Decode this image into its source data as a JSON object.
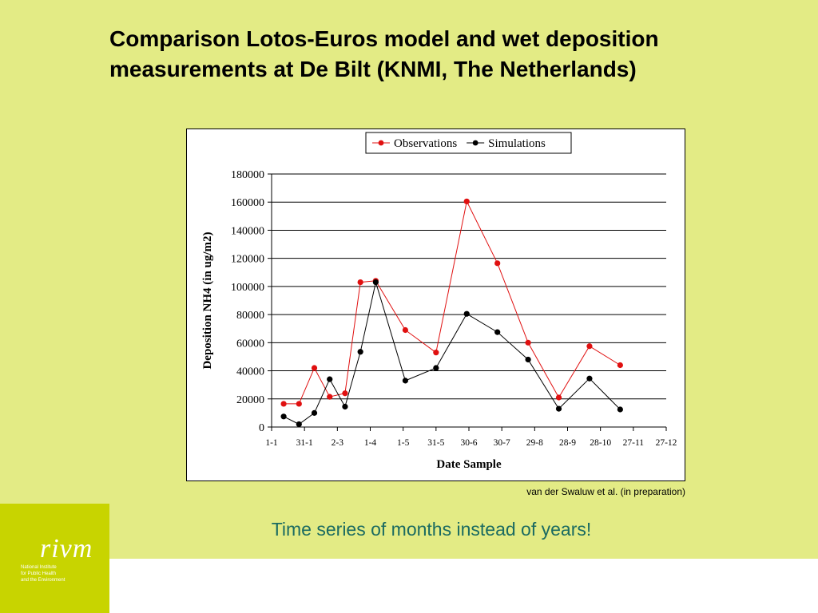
{
  "slide": {
    "title": "Comparison Lotos-Euros model and wet deposition measurements at De Bilt (KNMI, The Netherlands)",
    "source": "van der Swaluw et al. (in preparation)",
    "caption": "Time series of months instead of years!",
    "logo": {
      "name": "rivm",
      "subtitle": [
        "National Institute",
        "for Public Health",
        "and the Environment"
      ]
    }
  },
  "colors": {
    "background": "#e3eb85",
    "logo_block": "#c8d400",
    "caption": "#1b6b61",
    "observations": "#e01010",
    "simulations": "#000000"
  },
  "chart_data": {
    "type": "line",
    "title": "",
    "xlabel": "Date Sample",
    "ylabel": "Deposition NH4 (in ug/m2)",
    "x_ticks": [
      {
        "label": "1-1",
        "day": 0
      },
      {
        "label": "31-1",
        "day": 30
      },
      {
        "label": "2-3",
        "day": 60
      },
      {
        "label": "1-4",
        "day": 90
      },
      {
        "label": "1-5",
        "day": 120
      },
      {
        "label": "31-5",
        "day": 150
      },
      {
        "label": "30-6",
        "day": 180
      },
      {
        "label": "30-7",
        "day": 210
      },
      {
        "label": "29-8",
        "day": 240
      },
      {
        "label": "28-9",
        "day": 270
      },
      {
        "label": "28-10",
        "day": 300
      },
      {
        "label": "27-11",
        "day": 330
      },
      {
        "label": "27-12",
        "day": 360
      }
    ],
    "xlim": [
      0,
      360
    ],
    "ylim": [
      0,
      180000
    ],
    "y_ticks": [
      0,
      20000,
      40000,
      60000,
      80000,
      100000,
      120000,
      140000,
      160000,
      180000
    ],
    "grid": true,
    "legend_position": "top-right",
    "series": [
      {
        "name": "Observations",
        "color": "#e01010",
        "points": [
          [
            11,
            16500
          ],
          [
            25,
            16500
          ],
          [
            39,
            42000
          ],
          [
            53,
            21500
          ],
          [
            67,
            24000
          ],
          [
            81,
            103000
          ],
          [
            95,
            104000
          ],
          [
            122,
            69000
          ],
          [
            150,
            53000
          ],
          [
            178,
            160500
          ],
          [
            206,
            116500
          ],
          [
            234,
            60000
          ],
          [
            262,
            21000
          ],
          [
            290,
            57500
          ],
          [
            318,
            44000
          ]
        ]
      },
      {
        "name": "Simulations",
        "color": "#000000",
        "points": [
          [
            11,
            7500
          ],
          [
            25,
            2000
          ],
          [
            39,
            10000
          ],
          [
            53,
            34000
          ],
          [
            67,
            14500
          ],
          [
            81,
            53500
          ],
          [
            95,
            103000
          ],
          [
            122,
            33000
          ],
          [
            150,
            42000
          ],
          [
            178,
            80500
          ],
          [
            206,
            67500
          ],
          [
            234,
            48000
          ],
          [
            262,
            13000
          ],
          [
            290,
            34500
          ],
          [
            318,
            12500
          ]
        ]
      }
    ]
  }
}
